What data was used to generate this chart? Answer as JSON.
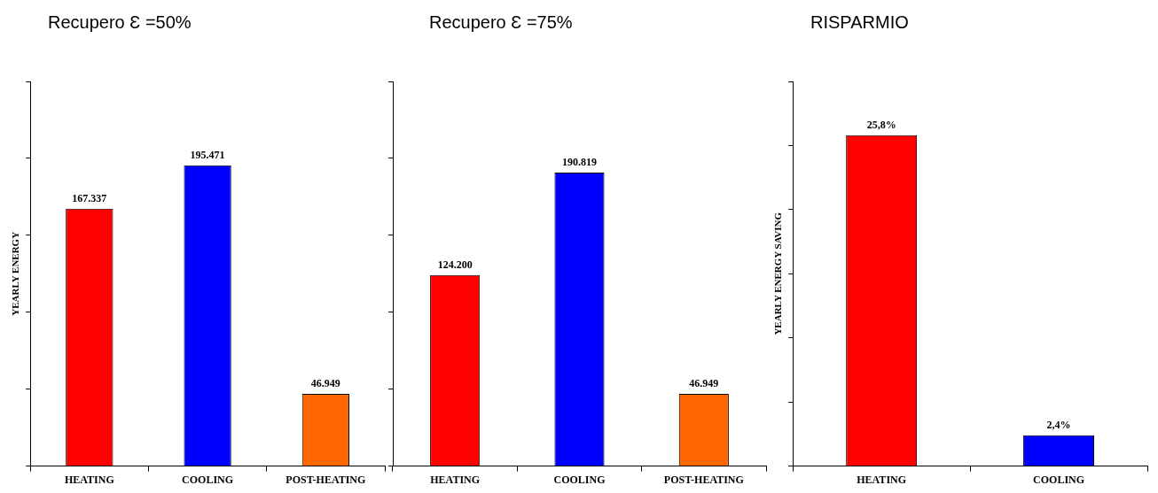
{
  "chart_data": [
    {
      "type": "bar",
      "title": "Recupero Ɛ =50%",
      "ylabel": "YEARLY ENERGY",
      "categories": [
        "HEATING",
        "COOLING",
        "POST-HEATING"
      ],
      "values": [
        167337,
        195471,
        46949
      ],
      "colors": [
        "#ff0000",
        "#0000ff",
        "#ff6600"
      ],
      "value_labels": [
        "167.337",
        "195.471",
        "46.949"
      ],
      "ylim": [
        0,
        250000
      ],
      "tick_labels": "x"
    },
    {
      "type": "bar",
      "title": "Recupero Ɛ =75%",
      "categories": [
        "HEATING",
        "COOLING",
        "POST-HEATING"
      ],
      "values": [
        124200,
        190819,
        46949
      ],
      "colors": [
        "#ff0000",
        "#0000ff",
        "#ff6600"
      ],
      "value_labels": [
        "124.200",
        "190.819",
        "46.949"
      ],
      "ylim": [
        0,
        250000
      ],
      "tick_labels": "x"
    },
    {
      "type": "bar",
      "title": "RISPARMIO",
      "ylabel": "YEARLY ENERGY SAVING",
      "categories": [
        "HEATING",
        "COOLING"
      ],
      "values": [
        25.8,
        2.4
      ],
      "colors": [
        "#ff0000",
        "#0000ff"
      ],
      "value_labels": [
        "25,8%",
        "2,4%"
      ],
      "ylim": [
        0,
        30
      ],
      "tick_labels": "x"
    }
  ]
}
